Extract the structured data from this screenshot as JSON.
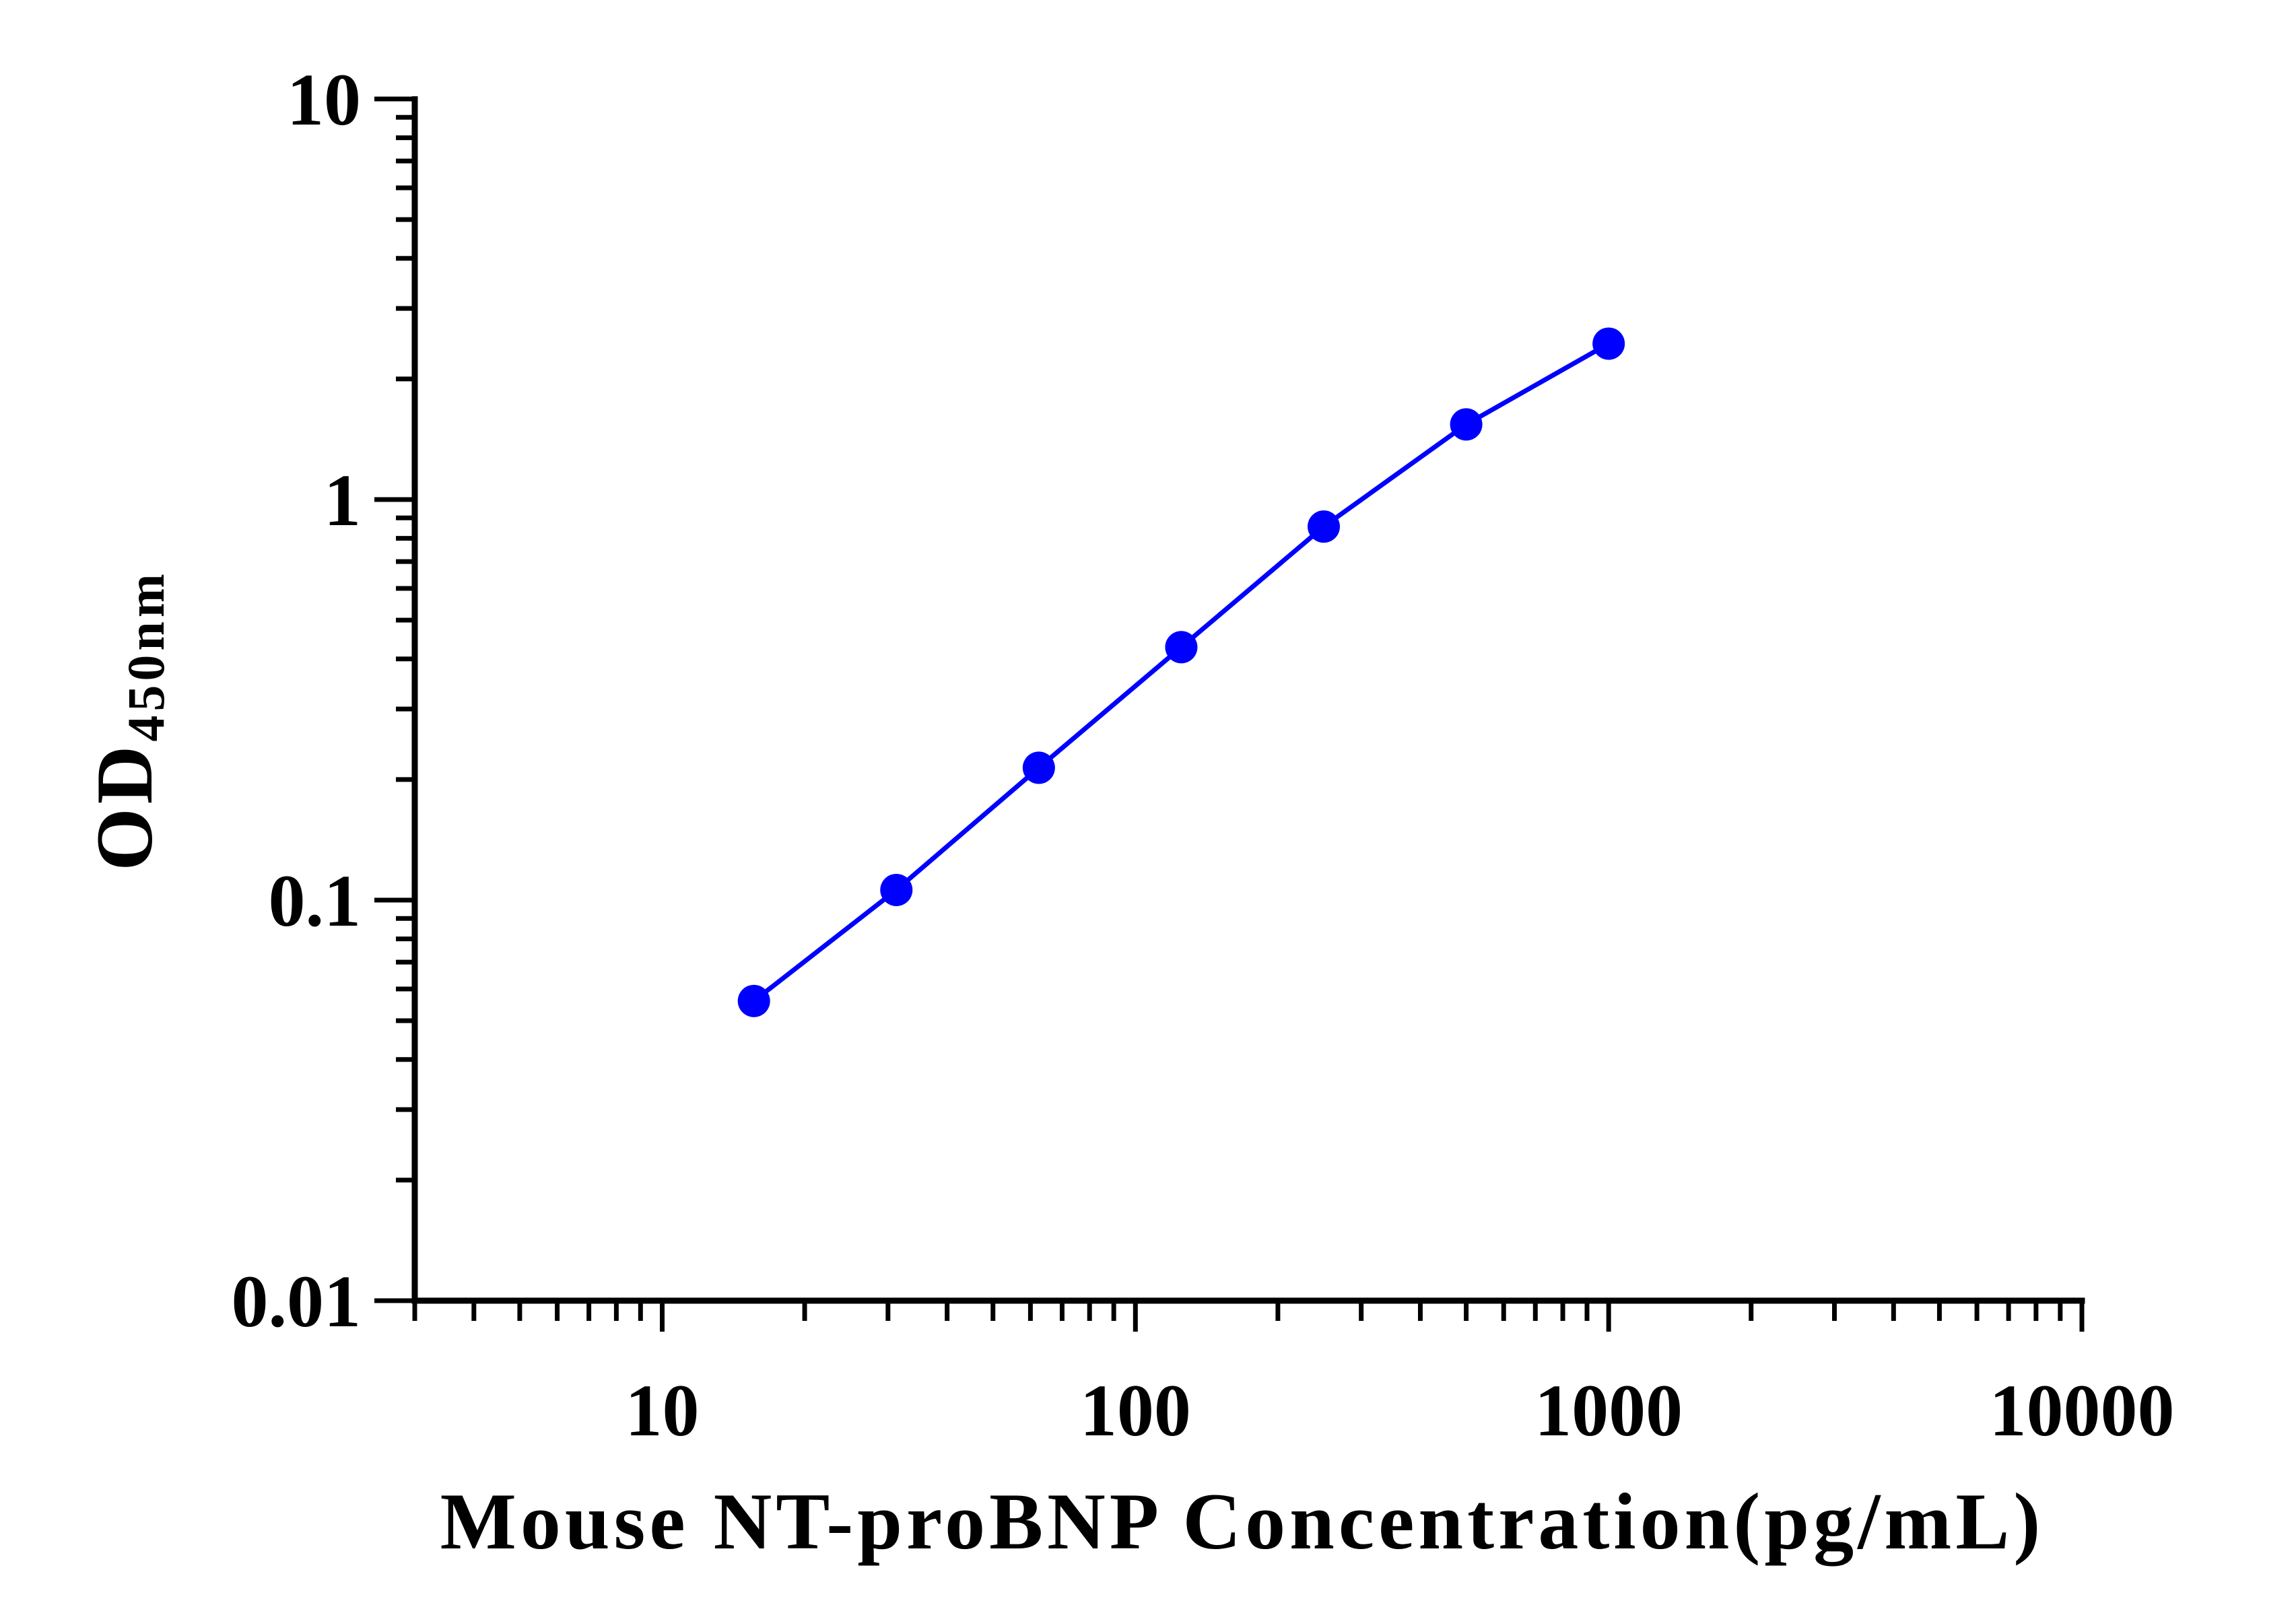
{
  "chart_data": {
    "type": "line",
    "title": "",
    "xlabel": "Mouse NT-proBNP Concentration(pg/mL)",
    "ylabel": {
      "main": "OD",
      "subscript": "450nm"
    },
    "x_scale": "log",
    "y_scale": "log",
    "xlim": [
      3,
      10000
    ],
    "ylim": [
      0.01,
      10
    ],
    "x_ticks": [
      10,
      100,
      1000,
      10000
    ],
    "x_tick_labels": [
      "10",
      "100",
      "1000",
      "10000"
    ],
    "y_ticks": [
      0.01,
      0.1,
      1,
      10
    ],
    "y_tick_labels": [
      "0.01",
      "0.1",
      "1",
      "10"
    ],
    "grid": false,
    "legend": "none",
    "series": [
      {
        "x": [
          15.625,
          31.25,
          62.5,
          125,
          250,
          500,
          1000
        ],
        "y": [
          0.056,
          0.106,
          0.214,
          0.428,
          0.856,
          1.54,
          2.45
        ],
        "color": "#0000ff",
        "marker": "circle"
      }
    ]
  }
}
